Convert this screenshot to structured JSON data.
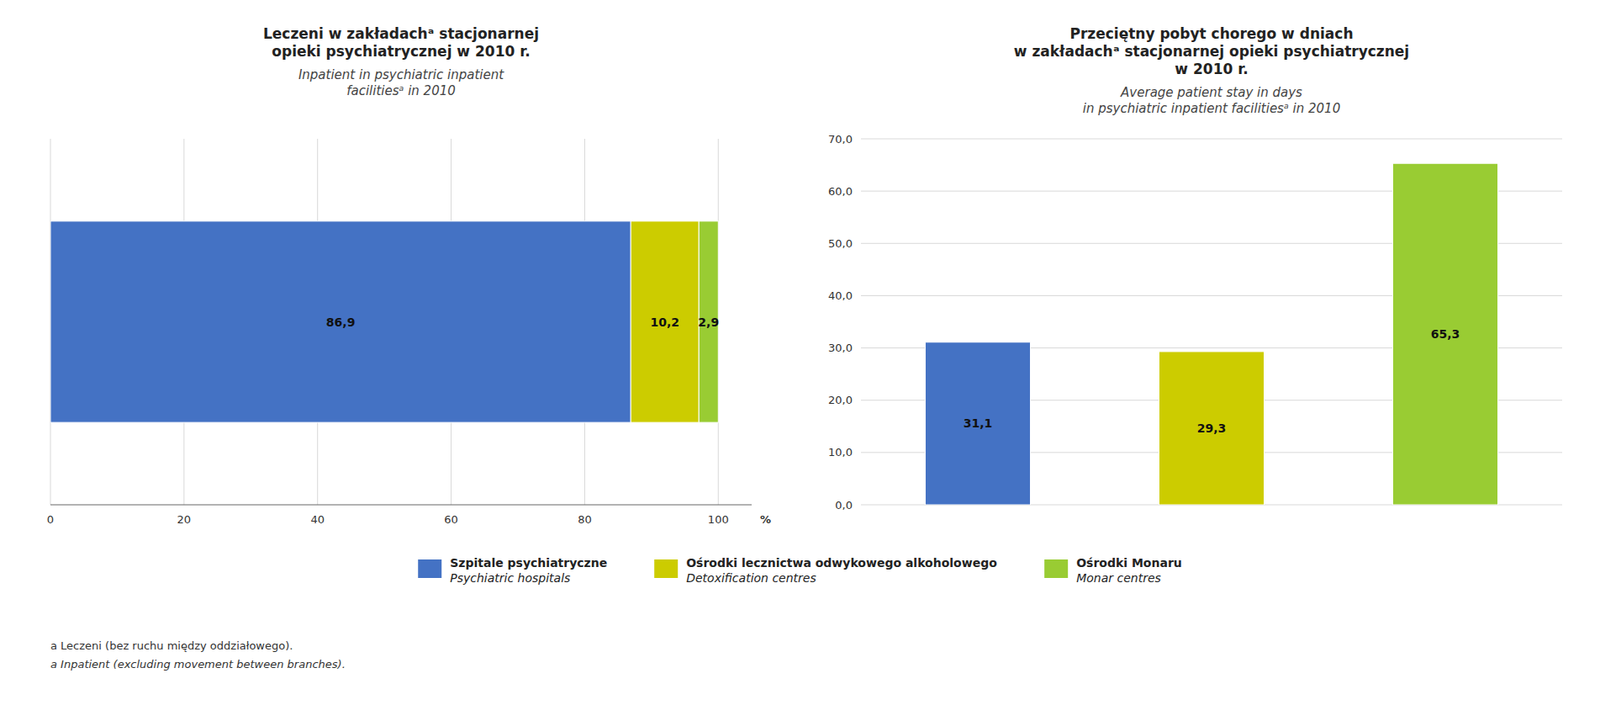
{
  "chart_data": [
    {
      "type": "bar",
      "orientation": "horizontal",
      "stacked": true,
      "title": "Leczeni w zakładachᵃ stacjonarnej\nopieki psychiatrycznej w 2010 r.",
      "subtitle": "Inpatient in psychiatric inpatient\nfacilitiesᵃ in 2010",
      "x_label": "%",
      "categories": [
        null
      ],
      "series": [
        {
          "name": "Szpitale psychiatryczne\nPsychiatric hospitals",
          "color": "#4472C4",
          "values": [
            86.9
          ],
          "value_labels": [
            "86,9"
          ]
        },
        {
          "name": "Ośrodki lecznictwa odwykowego alkoholowego\nDetoxification centres",
          "color": "#CCCC00",
          "values": [
            10.2
          ],
          "value_labels": [
            "10,2"
          ]
        },
        {
          "name": "Ośrodki Monaru\nMonar centres",
          "color": "#99CC33",
          "values": [
            2.9
          ],
          "value_labels": [
            "2,9"
          ]
        }
      ],
      "xlim": [
        0,
        105
      ],
      "xticks": [
        0,
        20,
        40,
        60,
        80,
        100
      ],
      "grid": true,
      "data_labels": true,
      "tick_labels": "x",
      "legend": "bottom",
      "annotations": [
        "a Leczeni (bez ruchu między oddziałowego).",
        "a Inpatient (excluding movement between branches)."
      ]
    },
    {
      "type": "bar",
      "title": "Przeciętny pobyt chorego w dniach\nw zakładachᵃ stacjonarnej opieki psychiatrycznej\nw 2010 r.",
      "subtitle": "Average patient stay in days\nin psychiatric inpatient facilitiesᵃ in 2010",
      "categories": [
        null,
        null,
        null
      ],
      "values": [
        31.1,
        29.3,
        65.3
      ],
      "value_labels": [
        "31,1",
        "29,3",
        "65,3"
      ],
      "colors": [
        "#4472C4",
        "#CCCC00",
        "#99CC33"
      ],
      "ylim": [
        0,
        70
      ],
      "yticks": [
        {
          "value": 0,
          "label": "0,0"
        },
        {
          "value": 10,
          "label": "10,0"
        },
        {
          "value": 20,
          "label": "20,0"
        },
        {
          "value": 30,
          "label": "30,0"
        },
        {
          "value": 40,
          "label": "40,0"
        },
        {
          "value": 50,
          "label": "50,0"
        },
        {
          "value": 60,
          "label": "60,0"
        },
        {
          "value": 70,
          "label": "70,0"
        }
      ],
      "grid": true,
      "data_labels": true,
      "tick_labels": "y"
    }
  ]
}
